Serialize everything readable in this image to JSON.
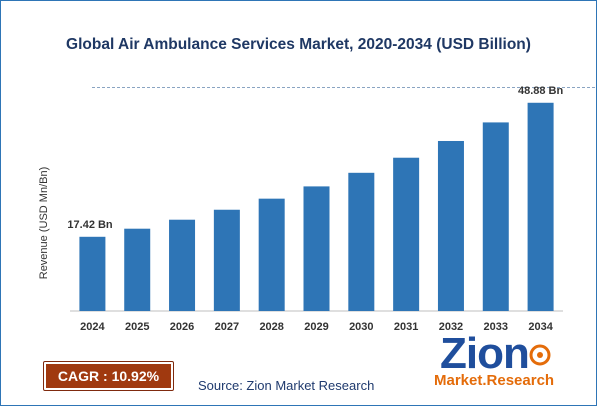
{
  "chart_data": {
    "type": "bar",
    "title": "Global Air Ambulance Services Market, 2020-2034 (USD Billion)",
    "ylabel": "Revenue (USD Mn/Bn)",
    "xlabel": "",
    "categories": [
      "2024",
      "2025",
      "2026",
      "2027",
      "2028",
      "2029",
      "2030",
      "2031",
      "2032",
      "2033",
      "2034"
    ],
    "values": [
      17.42,
      19.32,
      21.43,
      23.77,
      26.37,
      29.25,
      32.44,
      35.98,
      39.91,
      44.27,
      48.88
    ],
    "value_labels": [
      "17.42 Bn",
      "",
      "",
      "",
      "",
      "",
      "",
      "",
      "",
      "",
      "48.88 Bn"
    ],
    "ylim": [
      0,
      50
    ],
    "bar_color": "#2e75b6",
    "grid": false
  },
  "footer": {
    "cagr": "CAGR : 10.92%",
    "source": "Source: Zion Market Research"
  },
  "logo": {
    "name": "Zion",
    "sub_left": "Market.",
    "sub_right": "Research"
  }
}
